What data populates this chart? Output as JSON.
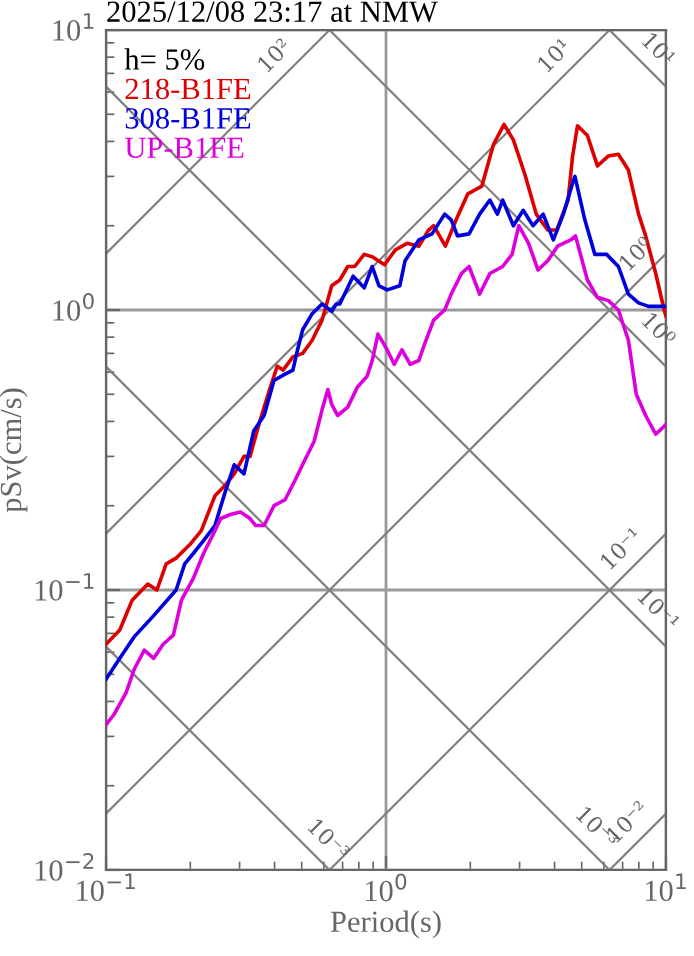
{
  "chart_data": {
    "type": "line",
    "title": "2025/12/08 23:17 at NMW",
    "xlabel": "Period(s)",
    "ylabel": "pSv(cm/s)",
    "legend_title": "h= 5%",
    "legend": "top left",
    "log": "xy",
    "grid": true,
    "xlim": [
      0.1,
      10
    ],
    "ylim": [
      0.01,
      10
    ],
    "xticks": [
      {
        "value": 0.1,
        "label": "10$^{−1}$"
      },
      {
        "value": 1,
        "label": "10$^{0}$"
      },
      {
        "value": 10,
        "label": "10$^{1}$"
      }
    ],
    "yticks": [
      {
        "value": 0.01,
        "label": "10$^{−2}$"
      },
      {
        "value": 0.1,
        "label": "10$^{−1}$"
      },
      {
        "value": 1,
        "label": "10$^{0}$"
      },
      {
        "value": 10,
        "label": "10$^{1}$"
      }
    ],
    "series": [
      {
        "name": "218-B1FE",
        "color": "#dd0000",
        "x": [
          0.1,
          0.112,
          0.124,
          0.141,
          0.152,
          0.164,
          0.178,
          0.199,
          0.219,
          0.245,
          0.265,
          0.287,
          0.311,
          0.327,
          0.354,
          0.384,
          0.409,
          0.429,
          0.465,
          0.504,
          0.545,
          0.591,
          0.64,
          0.684,
          0.73,
          0.773,
          0.836,
          0.893,
          0.988,
          1.08,
          1.19,
          1.31,
          1.42,
          1.48,
          1.63,
          1.78,
          1.96,
          2.2,
          2.42,
          2.64,
          2.85,
          3.13,
          3.44,
          3.78,
          4.07,
          4.47,
          4.64,
          4.83,
          5.24,
          5.69,
          6.23,
          6.76,
          7.34,
          7.98,
          8.46,
          9.19,
          9.85,
          10
        ],
        "values": [
          0.064,
          0.072,
          0.092,
          0.105,
          0.1,
          0.124,
          0.13,
          0.145,
          0.163,
          0.217,
          0.235,
          0.26,
          0.3,
          0.3,
          0.4,
          0.52,
          0.63,
          0.61,
          0.68,
          0.7,
          0.78,
          0.92,
          1.22,
          1.28,
          1.43,
          1.43,
          1.58,
          1.55,
          1.45,
          1.64,
          1.73,
          1.69,
          1.93,
          2.0,
          1.69,
          2.1,
          2.6,
          2.77,
          3.9,
          4.6,
          4.05,
          3.06,
          2.2,
          1.93,
          1.93,
          2.47,
          3.55,
          4.55,
          4.2,
          3.27,
          3.55,
          3.6,
          3.16,
          2.2,
          1.84,
          1.35,
          1.0,
          0.95
        ]
      },
      {
        "name": "308-B1FE",
        "color": "#0000dd",
        "x": [
          0.1,
          0.112,
          0.126,
          0.148,
          0.178,
          0.191,
          0.205,
          0.223,
          0.245,
          0.265,
          0.287,
          0.311,
          0.337,
          0.367,
          0.398,
          0.436,
          0.465,
          0.483,
          0.504,
          0.545,
          0.591,
          0.64,
          0.665,
          0.684,
          0.763,
          0.836,
          0.893,
          0.944,
          1.01,
          1.12,
          1.17,
          1.31,
          1.46,
          1.62,
          1.71,
          1.8,
          1.98,
          2.16,
          2.35,
          2.5,
          2.61,
          2.85,
          3.09,
          3.35,
          3.64,
          3.96,
          4.3,
          4.63,
          4.73,
          5.13,
          5.57,
          6.14,
          6.76,
          7.34,
          7.98,
          8.66,
          9.85,
          10
        ],
        "values": [
          0.048,
          0.057,
          0.068,
          0.081,
          0.1,
          0.124,
          0.135,
          0.15,
          0.17,
          0.22,
          0.28,
          0.26,
          0.37,
          0.42,
          0.56,
          0.59,
          0.61,
          0.72,
          0.85,
          0.97,
          1.05,
          0.99,
          1.05,
          1.05,
          1.32,
          1.2,
          1.43,
          1.22,
          1.18,
          1.22,
          1.5,
          1.78,
          1.87,
          2.2,
          2.1,
          1.84,
          1.87,
          2.2,
          2.47,
          2.2,
          2.47,
          2.0,
          2.27,
          2.0,
          2.2,
          1.78,
          2.2,
          2.82,
          3.0,
          2.1,
          1.58,
          1.58,
          1.43,
          1.14,
          1.06,
          1.03,
          1.03,
          1.03
        ]
      },
      {
        "name": "UP-B1FE",
        "color": "#dd00dd",
        "x": [
          0.1,
          0.107,
          0.118,
          0.126,
          0.137,
          0.148,
          0.16,
          0.174,
          0.186,
          0.205,
          0.223,
          0.245,
          0.257,
          0.278,
          0.302,
          0.327,
          0.342,
          0.367,
          0.398,
          0.436,
          0.472,
          0.512,
          0.554,
          0.591,
          0.62,
          0.64,
          0.672,
          0.73,
          0.79,
          0.856,
          0.893,
          0.936,
          1.01,
          1.07,
          1.14,
          1.22,
          1.31,
          1.37,
          1.48,
          1.62,
          1.71,
          1.86,
          1.98,
          2.16,
          2.35,
          2.61,
          2.82,
          2.98,
          3.23,
          3.49,
          3.78,
          4.1,
          4.57,
          4.75,
          5.24,
          5.69,
          6.23,
          6.76,
          7.34,
          7.83,
          8.46,
          9.19,
          10
        ],
        "values": [
          0.033,
          0.036,
          0.043,
          0.052,
          0.061,
          0.057,
          0.064,
          0.069,
          0.092,
          0.11,
          0.135,
          0.163,
          0.18,
          0.186,
          0.19,
          0.18,
          0.17,
          0.17,
          0.2,
          0.21,
          0.245,
          0.29,
          0.34,
          0.44,
          0.52,
          0.46,
          0.42,
          0.45,
          0.53,
          0.58,
          0.66,
          0.82,
          0.72,
          0.64,
          0.72,
          0.64,
          0.66,
          0.75,
          0.92,
          1.0,
          1.14,
          1.35,
          1.43,
          1.14,
          1.35,
          1.43,
          1.58,
          2.0,
          1.73,
          1.39,
          1.5,
          1.69,
          1.78,
          1.84,
          1.28,
          1.11,
          1.08,
          1.0,
          0.78,
          0.5,
          0.42,
          0.36,
          0.39
        ]
      },
      {
        "color": "#808080",
        "x": [
          6.283,
          10
        ],
        "values": [
          0.01,
          0.0159
        ]
      },
      {
        "color": "#808080",
        "x": [
          0.6283,
          10
        ],
        "values": [
          0.01,
          0.159
        ]
      },
      {
        "color": "#808080",
        "x": [
          0.1,
          10
        ],
        "values": [
          0.0159,
          1.59
        ]
      },
      {
        "color": "#808080",
        "x": [
          0.1,
          6.283
        ],
        "values": [
          0.159,
          10
        ]
      },
      {
        "color": "#808080",
        "x": [
          0.1,
          0.6283
        ],
        "values": [
          1.59,
          10
        ]
      },
      {
        "color": "#808080",
        "x": [
          0.1,
          0.6283
        ],
        "values": [
          0.0628,
          0.01
        ]
      },
      {
        "color": "#808080",
        "x": [
          0.1,
          6.283
        ],
        "values": [
          0.628,
          0.01
        ]
      },
      {
        "color": "#808080",
        "x": [
          0.1,
          10
        ],
        "values": [
          6.28,
          0.0628
        ]
      },
      {
        "color": "#808080",
        "x": [
          0.6283,
          10
        ],
        "values": [
          10,
          0.628
        ]
      },
      {
        "color": "#808080",
        "x": [
          6.283,
          10
        ],
        "values": [
          10,
          6.28
        ]
      }
    ],
    "annotations": [
      {
        "text": "10²",
        "x": 0.45,
        "y": 7.16
      },
      {
        "text": "10¹",
        "x": 4.5,
        "y": 7.16
      },
      {
        "text": "10¹",
        "x": 8.3,
        "y": 7.57
      },
      {
        "text": "10⁰",
        "x": 8.8,
        "y": 1.4
      },
      {
        "text": "10⁰",
        "x": 8.3,
        "y": 0.757
      },
      {
        "text": "10⁻¹",
        "x": 7.8,
        "y": 0.124
      },
      {
        "text": "10⁻¹",
        "x": 8.3,
        "y": 0.0757
      },
      {
        "text": "10⁻³",
        "x": 0.55,
        "y": 0.0114
      },
      {
        "text": "10⁻³",
        "x": 5.0,
        "y": 0.0126
      },
      {
        "text": "10⁻²",
        "x": 8.2,
        "y": 0.0131
      }
    ]
  }
}
